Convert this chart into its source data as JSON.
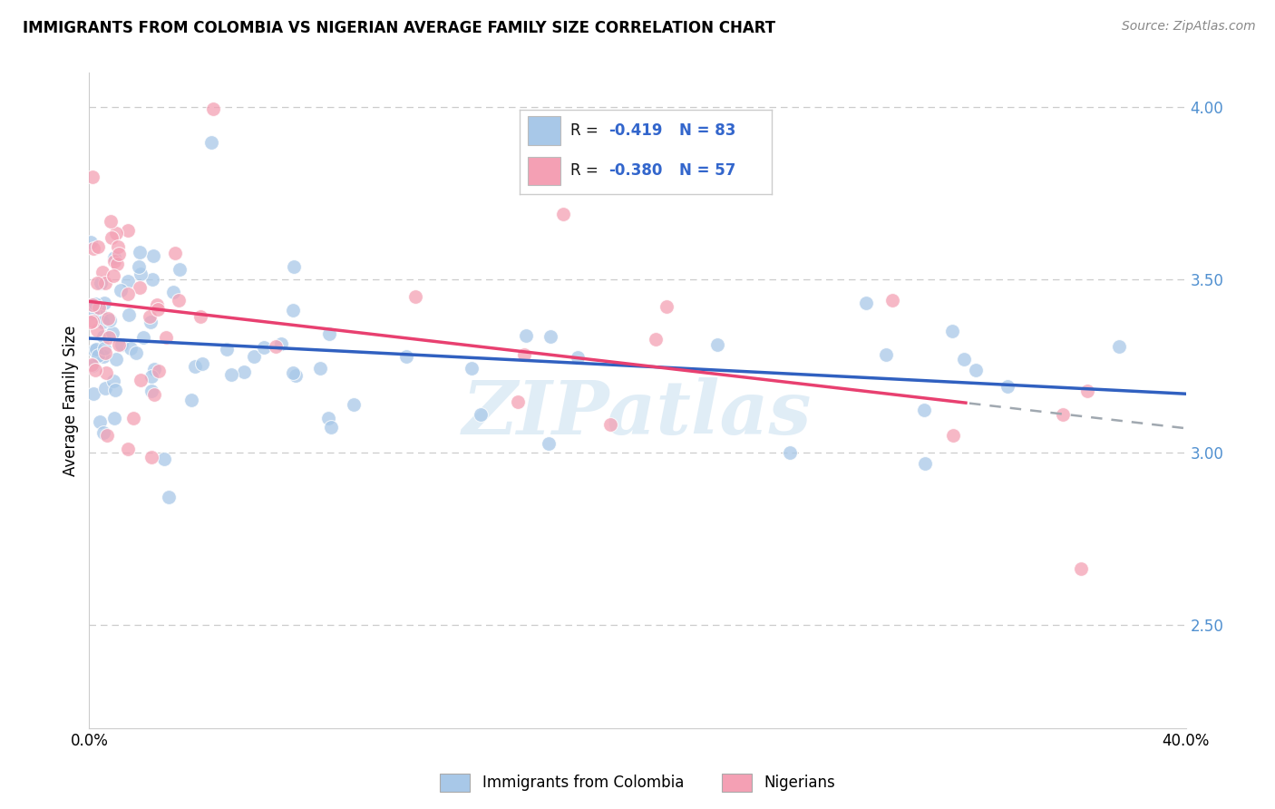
{
  "title": "IMMIGRANTS FROM COLOMBIA VS NIGERIAN AVERAGE FAMILY SIZE CORRELATION CHART",
  "source": "Source: ZipAtlas.com",
  "ylabel": "Average Family Size",
  "y_ticks": [
    2.5,
    3.0,
    3.5,
    4.0
  ],
  "x_min": 0.0,
  "x_max": 40.0,
  "y_min": 2.2,
  "y_max": 4.1,
  "colombia_R": -0.419,
  "colombia_N": 83,
  "nigeria_R": -0.38,
  "nigeria_N": 57,
  "colombia_color": "#A8C8E8",
  "nigeria_color": "#F4A0B4",
  "colombia_line_color": "#3060C0",
  "nigeria_line_color": "#E84070",
  "dashed_line_color": "#A0A8B0",
  "background_color": "#FFFFFF",
  "watermark": "ZIPatlas",
  "right_axis_color": "#5090D0",
  "legend_text_color": "#3366CC",
  "legend_r_label_color": "#000000"
}
